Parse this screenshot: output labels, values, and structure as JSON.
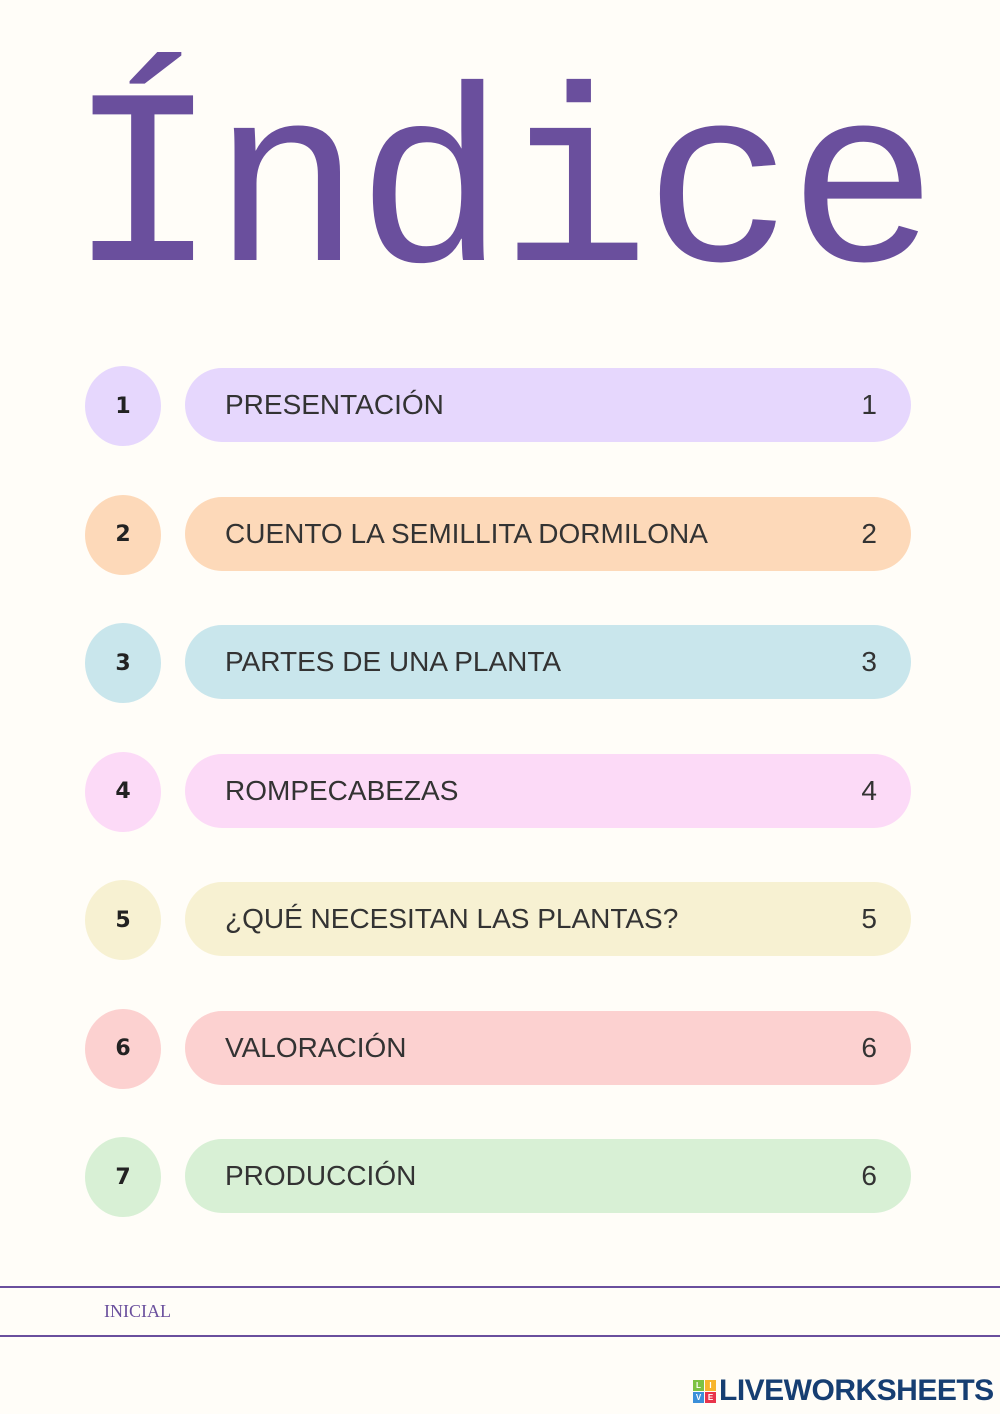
{
  "title": "Índice",
  "items": [
    {
      "num": "1",
      "label": "PRESENTACIÓN",
      "page": "1",
      "color": "#e6d7fd"
    },
    {
      "num": "2",
      "label": "CUENTO LA SEMILLITA DORMILONA",
      "page": "2",
      "color": "#fdd9b9"
    },
    {
      "num": "3",
      "label": "PARTES DE UNA PLANTA",
      "page": "3",
      "color": "#c9e6ec"
    },
    {
      "num": "4",
      "label": "ROMPECABEZAS",
      "page": "4",
      "color": "#fcdaf7"
    },
    {
      "num": "5",
      "label": "¿QUÉ NECESITAN LAS PLANTAS?",
      "page": "5",
      "color": "#f7f1d2"
    },
    {
      "num": "6",
      "label": "VALORACIÓN",
      "page": "6",
      "color": "#fcd1d0"
    },
    {
      "num": "7",
      "label": "PRODUCCIÓN",
      "page": "6",
      "color": "#d8f0d5"
    }
  ],
  "footer": {
    "label": "INICIAL"
  },
  "logo": {
    "text": "LIVEWORKSHEETS",
    "letters": [
      "L",
      "I",
      "V",
      "E"
    ]
  }
}
